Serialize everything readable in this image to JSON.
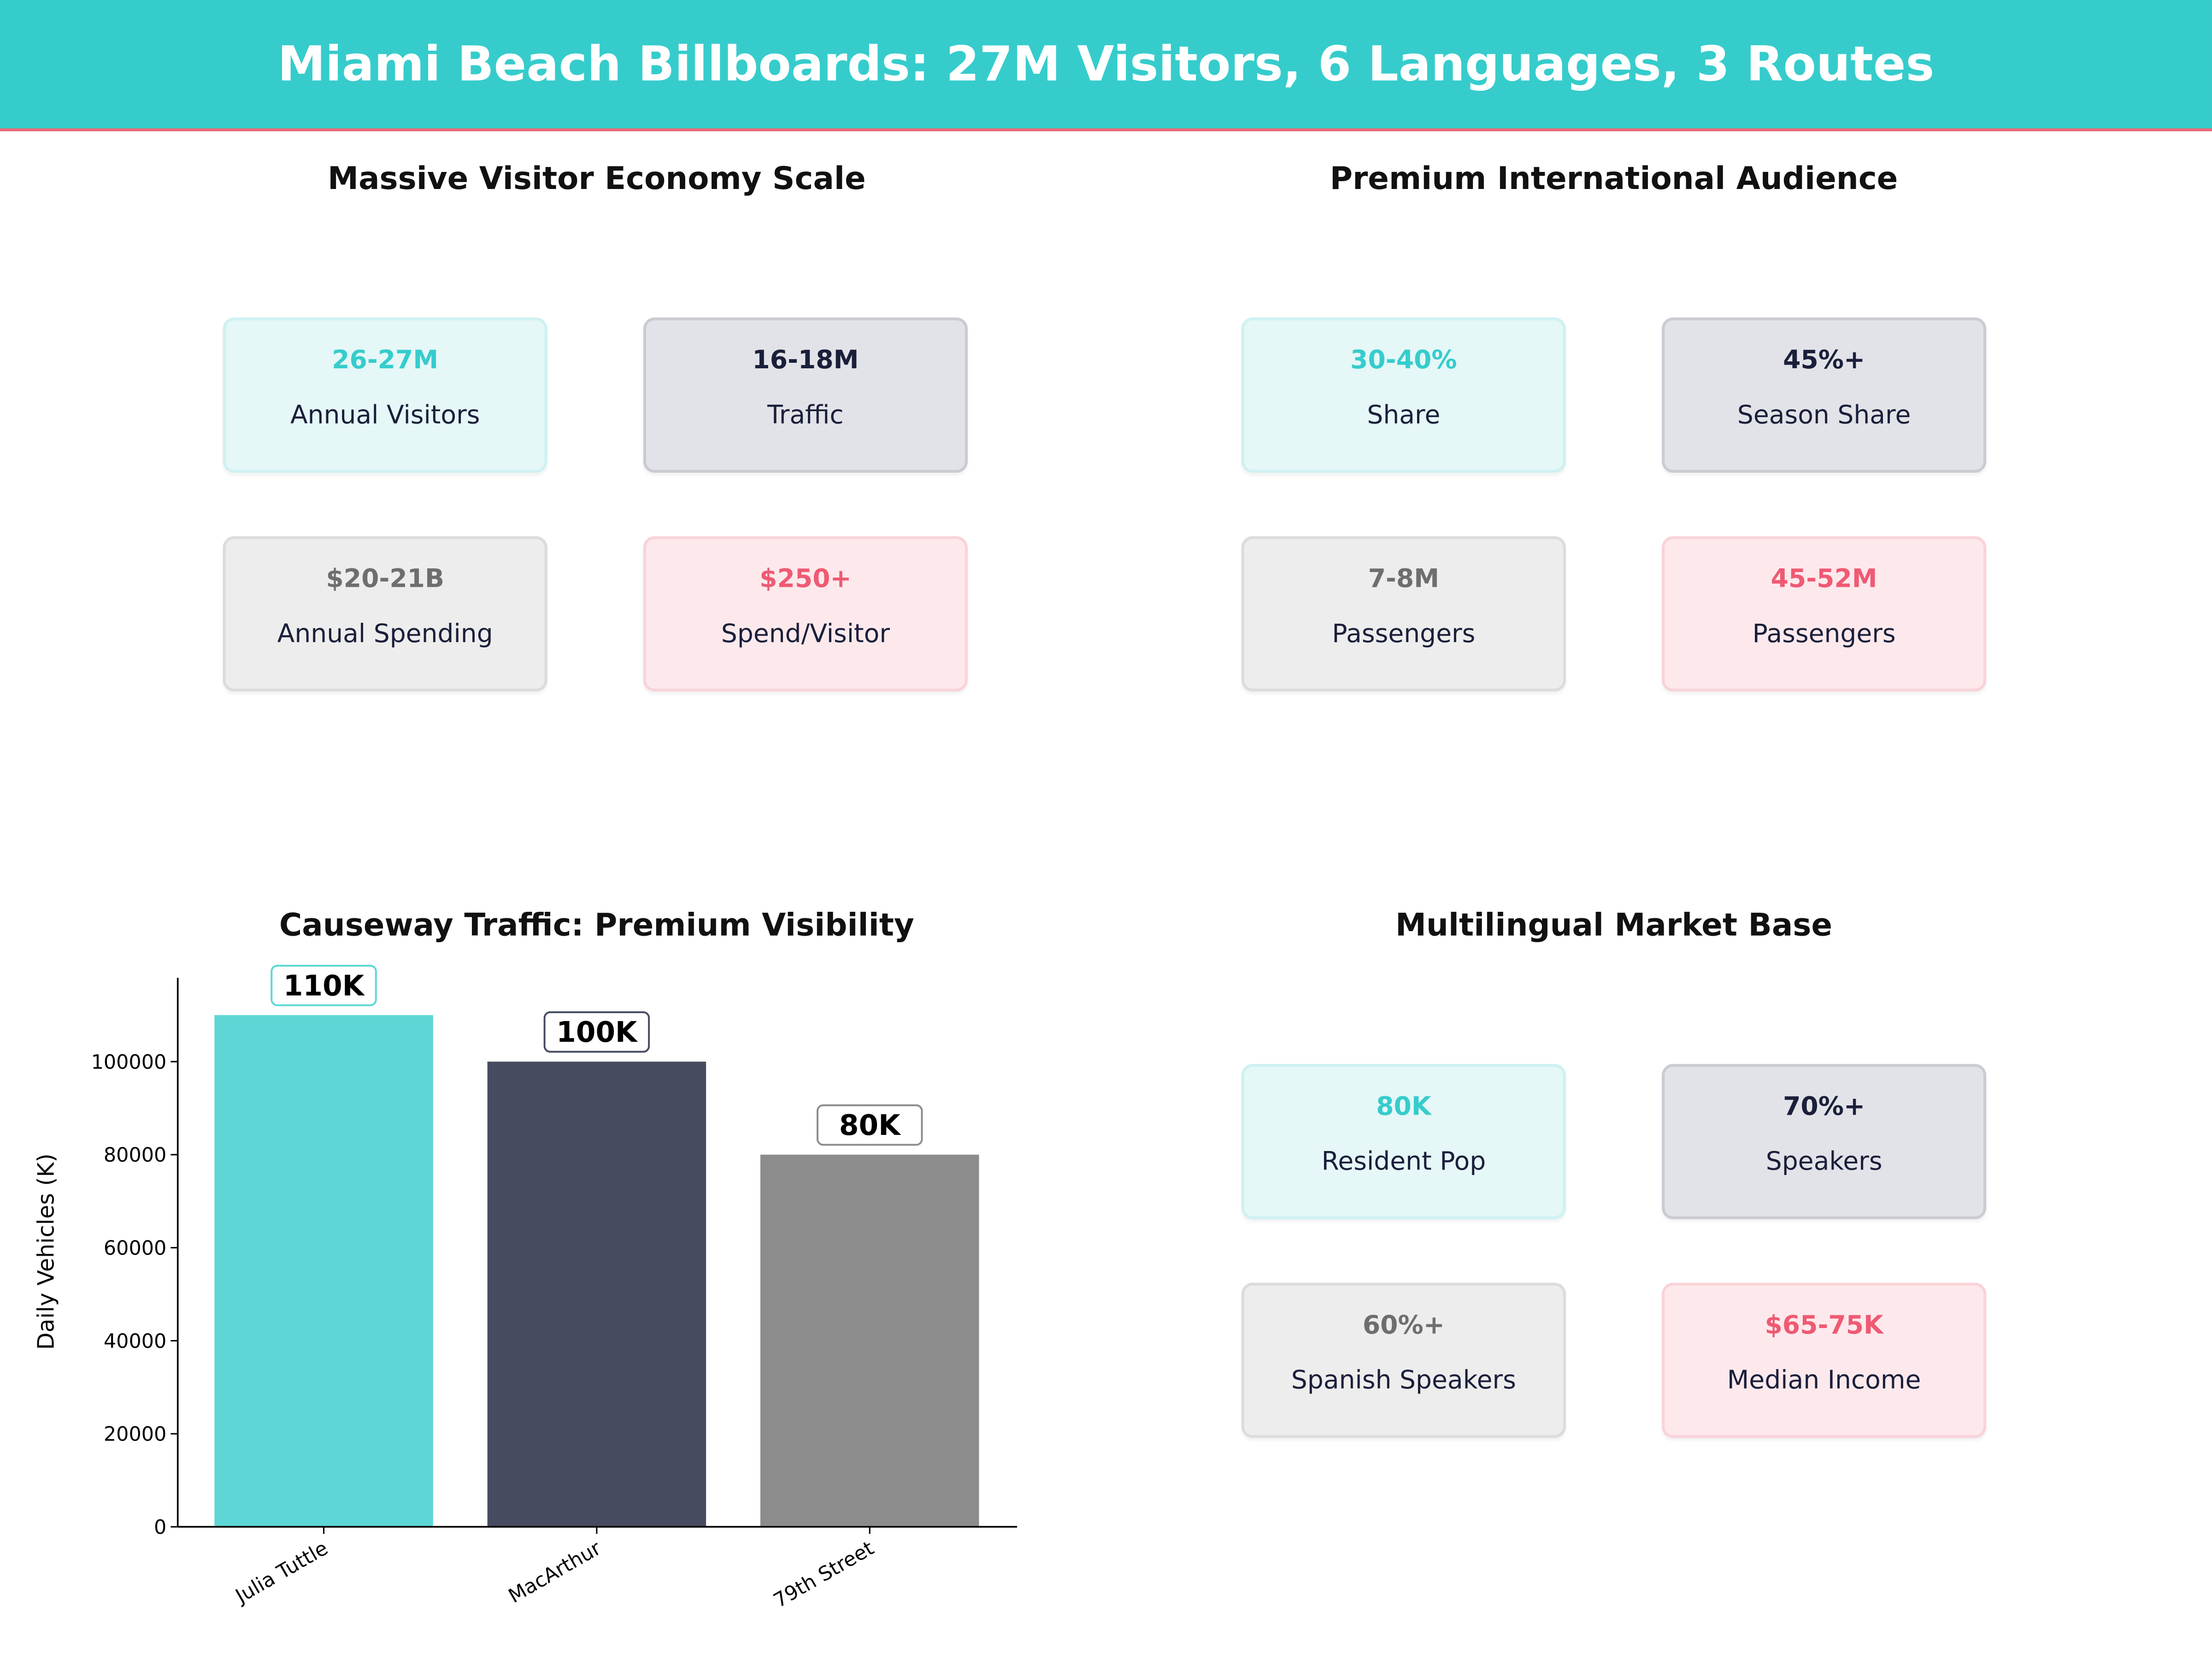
{
  "title": "Miami Beach Billboards: 27M Visitors, 6 Languages, 3 Routes",
  "colors": {
    "teal": "#36CCCC",
    "navy": "#1A1F3A",
    "gray": "#6E6E6E",
    "pink": "#EF5A73",
    "accent_line": "#F06577"
  },
  "panels": [
    {
      "title": "Massive Visitor Economy Scale",
      "cards": [
        {
          "value": "26-27M",
          "label": "Annual Visitors"
        },
        {
          "value": "16-18M",
          "label": "Traffic"
        },
        {
          "value": "$20-21B",
          "label": "Annual Spending"
        },
        {
          "value": "$250+",
          "label": "Spend/Visitor"
        }
      ]
    },
    {
      "title": "Premium International Audience",
      "cards": [
        {
          "value": "30-40%",
          "label": "Share"
        },
        {
          "value": "45%+",
          "label": "Season Share"
        },
        {
          "value": "7-8M",
          "label": "Passengers"
        },
        {
          "value": "45-52M",
          "label": "Passengers"
        }
      ]
    },
    {
      "title": "Multilingual Market Base",
      "cards": [
        {
          "value": "80K",
          "label": "Resident Pop"
        },
        {
          "value": "70%+",
          "label": "Speakers"
        },
        {
          "value": "60%+",
          "label": "Spanish Speakers"
        },
        {
          "value": "$65-75K",
          "label": "Median Income"
        }
      ]
    }
  ],
  "chart_data": {
    "type": "bar",
    "title": "Causeway Traffic: Premium Visibility",
    "xlabel": "",
    "ylabel": "Daily Vehicles (K)",
    "categories": [
      "Julia Tuttle",
      "MacArthur",
      "79th Street"
    ],
    "values": [
      110000,
      100000,
      80000
    ],
    "data_labels": [
      "110K",
      "100K",
      "80K"
    ],
    "bar_colors": [
      "#5DD7D5",
      "#464B60",
      "#8C8C8C"
    ],
    "label_border_colors": [
      "#5DD7D5",
      "#464B60",
      "#8C8C8C"
    ],
    "yticks": [
      0,
      20000,
      40000,
      60000,
      80000,
      100000
    ],
    "ylim": [
      0,
      118000
    ],
    "grid": false
  }
}
